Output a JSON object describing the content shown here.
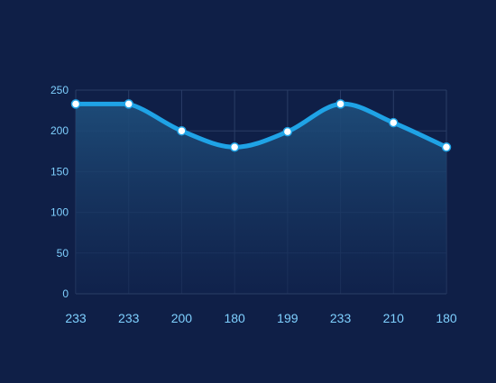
{
  "chart_data": {
    "type": "area",
    "title": "",
    "xlabel": "",
    "ylabel": "",
    "categories": [
      "233",
      "233",
      "200",
      "180",
      "199",
      "233",
      "210",
      "180"
    ],
    "series": [
      {
        "values": [
          233,
          233,
          200,
          180,
          199,
          233,
          210,
          180
        ]
      }
    ],
    "ylim": [
      0,
      250
    ],
    "yticks": [
      0,
      50,
      100,
      150,
      200,
      250
    ],
    "grid": true,
    "legend": "none",
    "smooth": true,
    "colors": {
      "background": "#0f1f47",
      "line": "#1fa3e6",
      "area_top": "#1e4d7a",
      "area_bottom": "#11244e",
      "grid": "#2a3d66",
      "tick_text": "#7fd0ff",
      "marker_fill": "#ffffff"
    }
  }
}
